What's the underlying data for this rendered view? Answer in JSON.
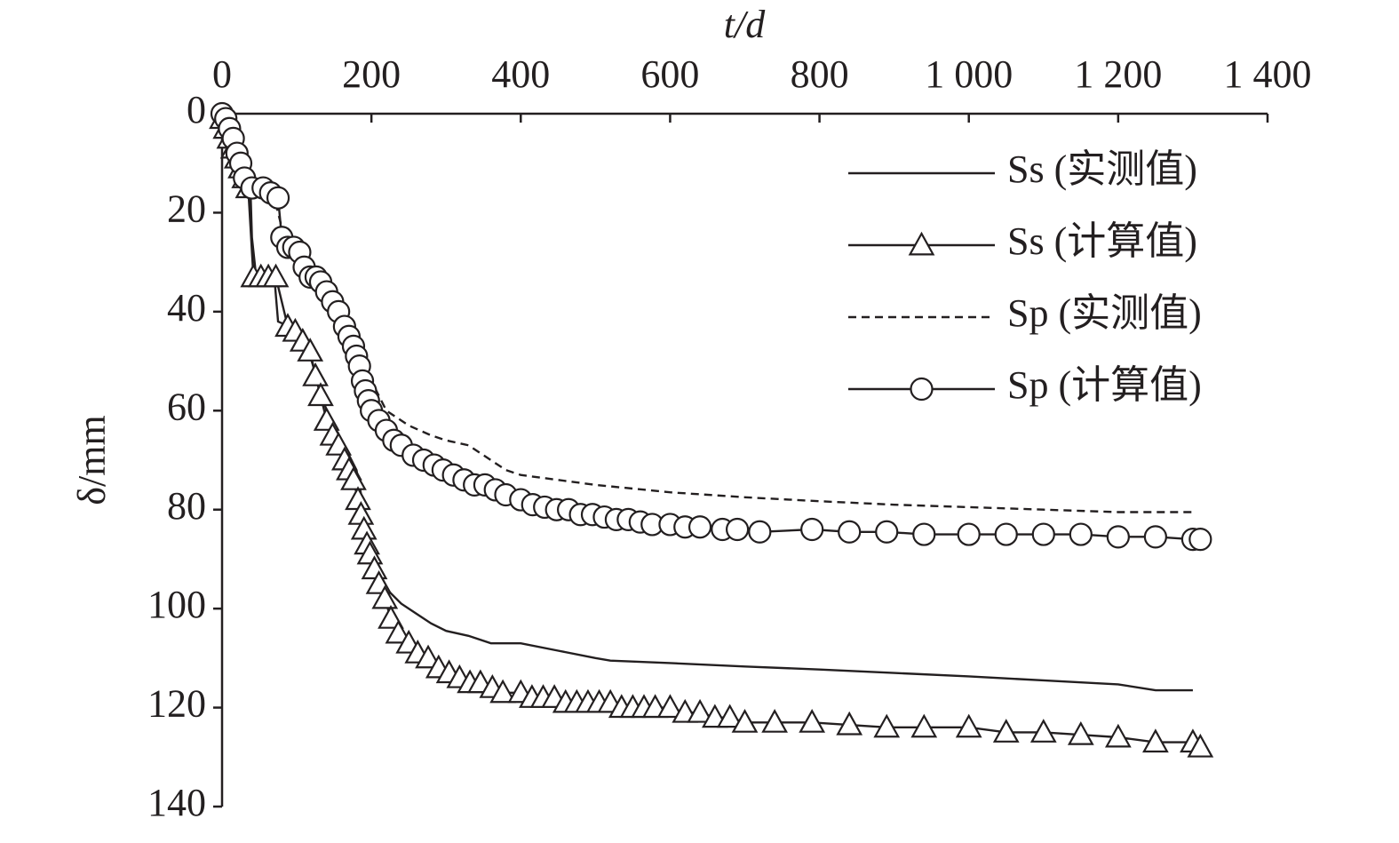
{
  "chart_data": {
    "type": "line",
    "x_label": "t/d",
    "y_label": "δ/mm",
    "xlim": [
      0,
      1400
    ],
    "xticks": [
      0,
      200,
      400,
      600,
      800,
      {
        "value": 1000,
        "label": "1 000"
      },
      {
        "value": 1200,
        "label": "1 200"
      },
      {
        "value": 1400,
        "label": "1 400"
      }
    ],
    "ylim": [
      0,
      140
    ],
    "yticks": [
      0,
      20,
      40,
      60,
      80,
      100,
      120,
      140
    ],
    "y_inverted": true,
    "x_axis_position": "top",
    "legend": "upper right",
    "series": [
      {
        "name": "Ss (实测值)",
        "color": "#231f20",
        "line": "solid",
        "marker": "none",
        "x": [
          0,
          10,
          20,
          30,
          38,
          40,
          45,
          60,
          70,
          75,
          90,
          100,
          120,
          140,
          160,
          180,
          190,
          200,
          210,
          220,
          240,
          260,
          280,
          300,
          330,
          360,
          400,
          450,
          500,
          520,
          600,
          700,
          800,
          900,
          1000,
          1100,
          1200,
          1250,
          1300
        ],
        "values": [
          0,
          3,
          7,
          12,
          15,
          25,
          32,
          33,
          33,
          42,
          43,
          45,
          50,
          60,
          66,
          72,
          80,
          88,
          93,
          96,
          99,
          101,
          103,
          104.5,
          105.5,
          107,
          107,
          108.5,
          110,
          110.5,
          111,
          111.7,
          112.3,
          113,
          113.7,
          114.5,
          115.3,
          116.5,
          116.5
        ]
      },
      {
        "name": "Ss (计算值)",
        "color": "#231f20",
        "line": "solid",
        "marker": "triangle",
        "x": [
          0,
          5,
          10,
          15,
          20,
          25,
          30,
          35,
          42,
          52,
          62,
          72,
          88,
          98,
          108,
          118,
          125,
          132,
          140,
          148,
          156,
          164,
          170,
          176,
          182,
          186,
          190,
          194,
          198,
          204,
          210,
          218,
          226,
          236,
          250,
          262,
          276,
          290,
          304,
          318,
          332,
          346,
          362,
          376,
          400,
          415,
          430,
          445,
          460,
          475,
          490,
          505,
          520,
          535,
          550,
          565,
          580,
          600,
          620,
          640,
          660,
          680,
          700,
          740,
          790,
          840,
          890,
          940,
          1000,
          1050,
          1100,
          1150,
          1200,
          1250,
          1300,
          1310
        ],
        "values": [
          1,
          3,
          5,
          7,
          9,
          11,
          13,
          15,
          33,
          33,
          33,
          33,
          43,
          44,
          46,
          48,
          53,
          57,
          62,
          65,
          67,
          70,
          72,
          74,
          78,
          81,
          84,
          87,
          89,
          92,
          95,
          98,
          102,
          105,
          107,
          109,
          110,
          112,
          113,
          114,
          115,
          115,
          116,
          117,
          117,
          118,
          118,
          118,
          119,
          119,
          119,
          119,
          119,
          120,
          120,
          120,
          120,
          120,
          121,
          121,
          122,
          122,
          123,
          123,
          123,
          123.5,
          124,
          124,
          124,
          125,
          125,
          125.5,
          126,
          127,
          127,
          128
        ]
      },
      {
        "name": "Sp (实测值)",
        "color": "#231f20",
        "line": "dashed",
        "marker": "none",
        "x": [
          0,
          20,
          40,
          60,
          70,
          80,
          90,
          100,
          120,
          140,
          160,
          180,
          200,
          220,
          250,
          280,
          300,
          330,
          360,
          380,
          400,
          450,
          500,
          600,
          700,
          800,
          900,
          1000,
          1100,
          1200,
          1300
        ],
        "values": [
          0,
          6,
          13,
          15,
          17,
          23,
          26,
          28,
          31,
          35,
          40,
          46,
          54,
          60,
          63,
          65,
          66,
          67,
          70,
          72,
          73,
          74,
          75,
          76.5,
          77.5,
          78.3,
          79,
          79.5,
          80,
          80.5,
          80.5
        ]
      },
      {
        "name": "Sp (计算值)",
        "color": "#231f20",
        "line": "solid",
        "marker": "circle",
        "x": [
          0,
          5,
          10,
          15,
          20,
          25,
          30,
          40,
          55,
          65,
          75,
          80,
          88,
          96,
          104,
          110,
          118,
          126,
          132,
          140,
          148,
          156,
          164,
          170,
          176,
          180,
          184,
          188,
          192,
          196,
          200,
          210,
          220,
          230,
          240,
          256,
          270,
          284,
          296,
          310,
          324,
          338,
          352,
          366,
          380,
          400,
          416,
          432,
          448,
          464,
          480,
          496,
          512,
          528,
          544,
          560,
          576,
          600,
          620,
          640,
          670,
          690,
          720,
          790,
          840,
          890,
          940,
          1000,
          1050,
          1100,
          1150,
          1200,
          1250,
          1300,
          1310
        ],
        "values": [
          0,
          1,
          3,
          5,
          8,
          10,
          13,
          15,
          15,
          16,
          17,
          25,
          27,
          27,
          28,
          31,
          33,
          33,
          34,
          36,
          38,
          40,
          43,
          45,
          47,
          49,
          51,
          54,
          56,
          58,
          60,
          62,
          64,
          66,
          67,
          69,
          70,
          71,
          72,
          73,
          74,
          75,
          75,
          76,
          77,
          78,
          79,
          79.5,
          80,
          80,
          81,
          81,
          81.5,
          82,
          82,
          82.5,
          83,
          83,
          83.5,
          83.5,
          84,
          84,
          84.5,
          84,
          84.5,
          84.5,
          85,
          85,
          85,
          85,
          85,
          85.5,
          85.5,
          86,
          86
        ]
      }
    ]
  }
}
